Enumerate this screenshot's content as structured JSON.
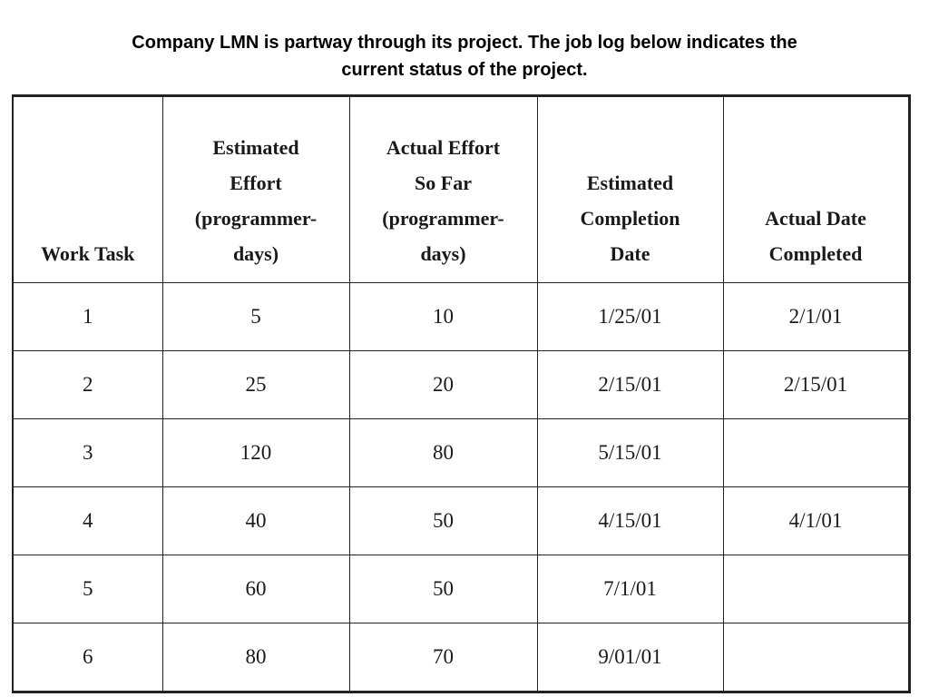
{
  "slide": {
    "title_line1": "Company LMN is partway through its project. The job log below indicates the",
    "title_line2": "current status of the project."
  },
  "table": {
    "headers": [
      "Work Task",
      "Estimated\nEffort\n(programmer-\ndays)",
      "Actual Effort\nSo Far\n(programmer-\ndays)",
      "Estimated\nCompletion\nDate",
      "Actual Date\nCompleted"
    ],
    "rows": [
      [
        "1",
        "5",
        "10",
        "1/25/01",
        "2/1/01"
      ],
      [
        "2",
        "25",
        "20",
        "2/15/01",
        "2/15/01"
      ],
      [
        "3",
        "120",
        "80",
        "5/15/01",
        ""
      ],
      [
        "4",
        "40",
        "50",
        "4/15/01",
        "4/1/01"
      ],
      [
        "5",
        "60",
        "50",
        "7/1/01",
        ""
      ],
      [
        "6",
        "80",
        "70",
        "9/01/01",
        ""
      ]
    ]
  }
}
